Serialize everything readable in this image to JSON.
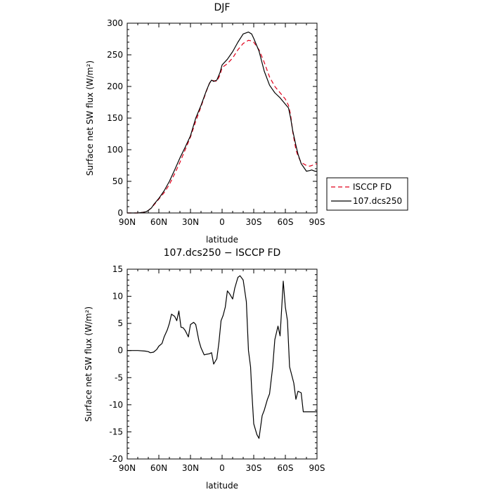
{
  "chart_data": [
    {
      "type": "line",
      "title": "DJF",
      "xlabel": "latitude",
      "ylabel": "Surface net SW flux (W/m²)",
      "xlim": [
        -90,
        90
      ],
      "ylim": [
        0,
        300
      ],
      "xticks": [
        -90,
        -60,
        -30,
        0,
        30,
        60,
        90
      ],
      "xtick_labels": [
        "90N",
        "60N",
        "30N",
        "0",
        "30S",
        "60S",
        "90S"
      ],
      "yticks": [
        0,
        50,
        100,
        150,
        200,
        250,
        300
      ],
      "grid": false,
      "legend_position": "right, outside",
      "series": [
        {
          "name": "ISCCP FD",
          "color": "#e0001b",
          "dash": "dashed",
          "x": [
            -90,
            -80,
            -75,
            -72,
            -70,
            -67,
            -65,
            -60,
            -55,
            -50,
            -45,
            -40,
            -35,
            -30,
            -25,
            -20,
            -15,
            -12,
            -10,
            -8,
            -5,
            -2,
            0,
            5,
            10,
            15,
            20,
            25,
            28,
            30,
            35,
            40,
            45,
            50,
            55,
            60,
            63,
            65,
            67,
            70,
            72,
            75,
            80,
            83,
            85,
            88,
            90
          ],
          "y": [
            0,
            0,
            1,
            2,
            4,
            8,
            12,
            22,
            32,
            45,
            62,
            80,
            100,
            120,
            145,
            168,
            192,
            205,
            210,
            209,
            208,
            218,
            230,
            236,
            245,
            258,
            268,
            273,
            272,
            270,
            258,
            238,
            215,
            200,
            190,
            180,
            170,
            155,
            128,
            100,
            90,
            80,
            75,
            74,
            75,
            77,
            78
          ]
        },
        {
          "name": "107.dcs250",
          "color": "#000000",
          "dash": "solid",
          "x": [
            -90,
            -80,
            -75,
            -72,
            -70,
            -67,
            -65,
            -60,
            -55,
            -50,
            -45,
            -40,
            -35,
            -30,
            -25,
            -20,
            -15,
            -12,
            -10,
            -8,
            -5,
            -2,
            0,
            5,
            10,
            15,
            20,
            25,
            28,
            30,
            35,
            40,
            45,
            50,
            55,
            60,
            63,
            65,
            67,
            70,
            72,
            75,
            80,
            83,
            85,
            88,
            90
          ],
          "y": [
            0,
            0,
            1,
            2,
            4,
            8,
            13,
            23,
            35,
            50,
            68,
            87,
            104,
            122,
            150,
            170,
            193,
            205,
            210,
            208,
            210,
            222,
            234,
            243,
            255,
            270,
            283,
            286,
            283,
            276,
            256,
            224,
            202,
            190,
            182,
            172,
            166,
            150,
            130,
            107,
            93,
            78,
            66,
            67,
            68,
            66,
            66
          ]
        }
      ]
    },
    {
      "type": "line",
      "title": "107.dcs250 − ISCCP FD",
      "xlabel": "latitude",
      "ylabel": "Surface net SW flux (W/m²)",
      "xlim": [
        -90,
        90
      ],
      "ylim": [
        -20,
        15
      ],
      "xticks": [
        -90,
        -60,
        -30,
        0,
        30,
        60,
        90
      ],
      "xtick_labels": [
        "90N",
        "60N",
        "30N",
        "0",
        "30S",
        "60S",
        "90S"
      ],
      "yticks": [
        -20,
        -15,
        -10,
        -5,
        0,
        5,
        10,
        15
      ],
      "grid": false,
      "series": [
        {
          "color": "#000000",
          "dash": "solid",
          "x": [
            -90,
            -80,
            -73,
            -70,
            -68,
            -65,
            -62,
            -60,
            -57,
            -55,
            -52,
            -50,
            -48,
            -45,
            -43,
            -41,
            -39,
            -37,
            -35,
            -32,
            -30,
            -27,
            -25,
            -22,
            -20,
            -17,
            -15,
            -12,
            -10,
            -8,
            -5,
            -3,
            -1,
            1,
            3,
            5,
            7,
            10,
            12,
            15,
            17,
            20,
            23,
            25,
            27,
            28,
            30,
            33,
            35,
            38,
            40,
            43,
            45,
            48,
            50,
            53,
            55,
            58,
            60,
            62,
            64,
            66,
            68,
            70,
            72,
            75,
            77,
            80,
            83,
            85,
            88,
            90
          ],
          "y": [
            0,
            0,
            -0.1,
            -0.2,
            -0.4,
            -0.3,
            0.2,
            0.8,
            1.3,
            2.5,
            3.8,
            5,
            6.7,
            6.3,
            5.5,
            7.3,
            4.3,
            4.2,
            3.7,
            2.5,
            4.8,
            5.2,
            4.8,
            1.8,
            0.5,
            -0.8,
            -0.7,
            -0.6,
            -0.4,
            -2.5,
            -1.5,
            1.5,
            5.5,
            6.5,
            8,
            11,
            10.5,
            9.5,
            11.5,
            13.5,
            13.8,
            13,
            9,
            0,
            -3,
            -7,
            -13.5,
            -15.5,
            -16.2,
            -12,
            -11,
            -9,
            -8,
            -3,
            2,
            4.5,
            2.7,
            12.8,
            8,
            5.5,
            -3,
            -4.5,
            -6,
            -9,
            -7.5,
            -7.8,
            -11.3,
            -11.3,
            -11.3,
            -11.3,
            -11.3,
            -11.3
          ]
        }
      ]
    }
  ]
}
